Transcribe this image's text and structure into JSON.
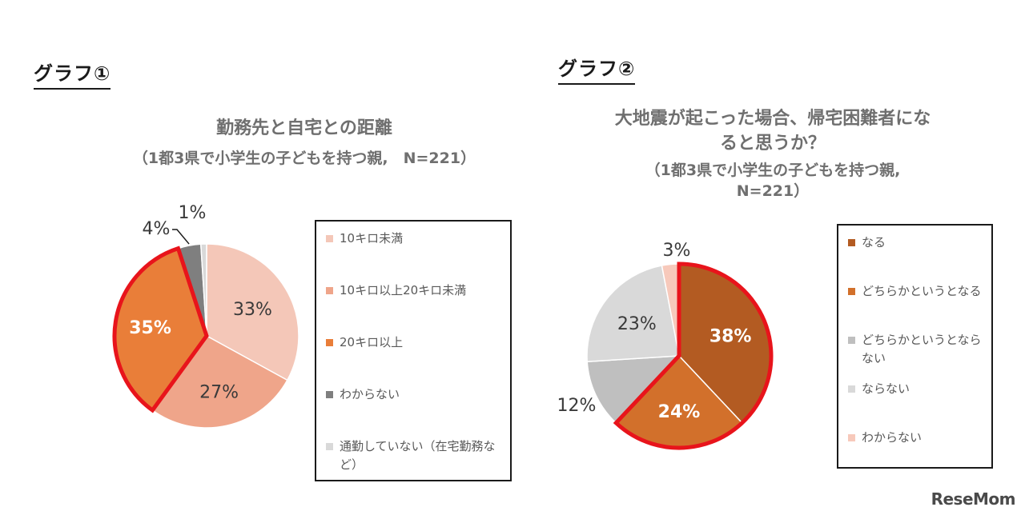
{
  "graph1": {
    "label": "グラフ①",
    "title": "勤務先と自宅との距離",
    "subtitle": "（1都3県で小学生の子どもを持つ親,　N=221）"
  },
  "graph2": {
    "label": "グラフ②",
    "title_line1": "大地震が起こった場合、帰宅困難者にな",
    "title_line2": "ると思うか？",
    "subtitle_line1": "（1都3県で小学生の子どもを持つ親,",
    "subtitle_line2": "N=221）"
  },
  "chart_data": [
    {
      "type": "pie",
      "title": "勤務先と自宅との距離",
      "subtitle": "（1都3県で小学生の子どもを持つ親,　N=221）",
      "categories": [
        "10キロ未満",
        "10キロ以上20キロ未満",
        "20キロ以上",
        "わからない",
        "通勤していない（在宅勤務など）"
      ],
      "values": [
        33,
        27,
        35,
        4,
        1
      ],
      "labels": [
        "33%",
        "27%",
        "35%",
        "4%",
        "1%"
      ],
      "colors": [
        "#f4c7b8",
        "#efa58a",
        "#e97e39",
        "#7f7f7f",
        "#d9d9d9"
      ],
      "highlighted": [
        "20キロ以上"
      ],
      "highlight_color": "#e8141b",
      "legend_position": "right"
    },
    {
      "type": "pie",
      "title": "大地震が起こった場合、帰宅困難者になると思うか？",
      "subtitle": "（1都3県で小学生の子どもを持つ親, N=221）",
      "categories": [
        "なる",
        "どちらかというとなる",
        "どちらかというとならない",
        "ならない",
        "わからない"
      ],
      "values": [
        38,
        24,
        12,
        23,
        3
      ],
      "labels": [
        "38%",
        "24%",
        "12%",
        "23%",
        "3%"
      ],
      "colors": [
        "#b35b22",
        "#d2702b",
        "#bfbfbf",
        "#d9d9d9",
        "#f7c9bb"
      ],
      "highlighted": [
        "なる",
        "どちらかというとなる"
      ],
      "highlight_color": "#e8141b",
      "legend_position": "right"
    }
  ],
  "logo": "ReseMom"
}
